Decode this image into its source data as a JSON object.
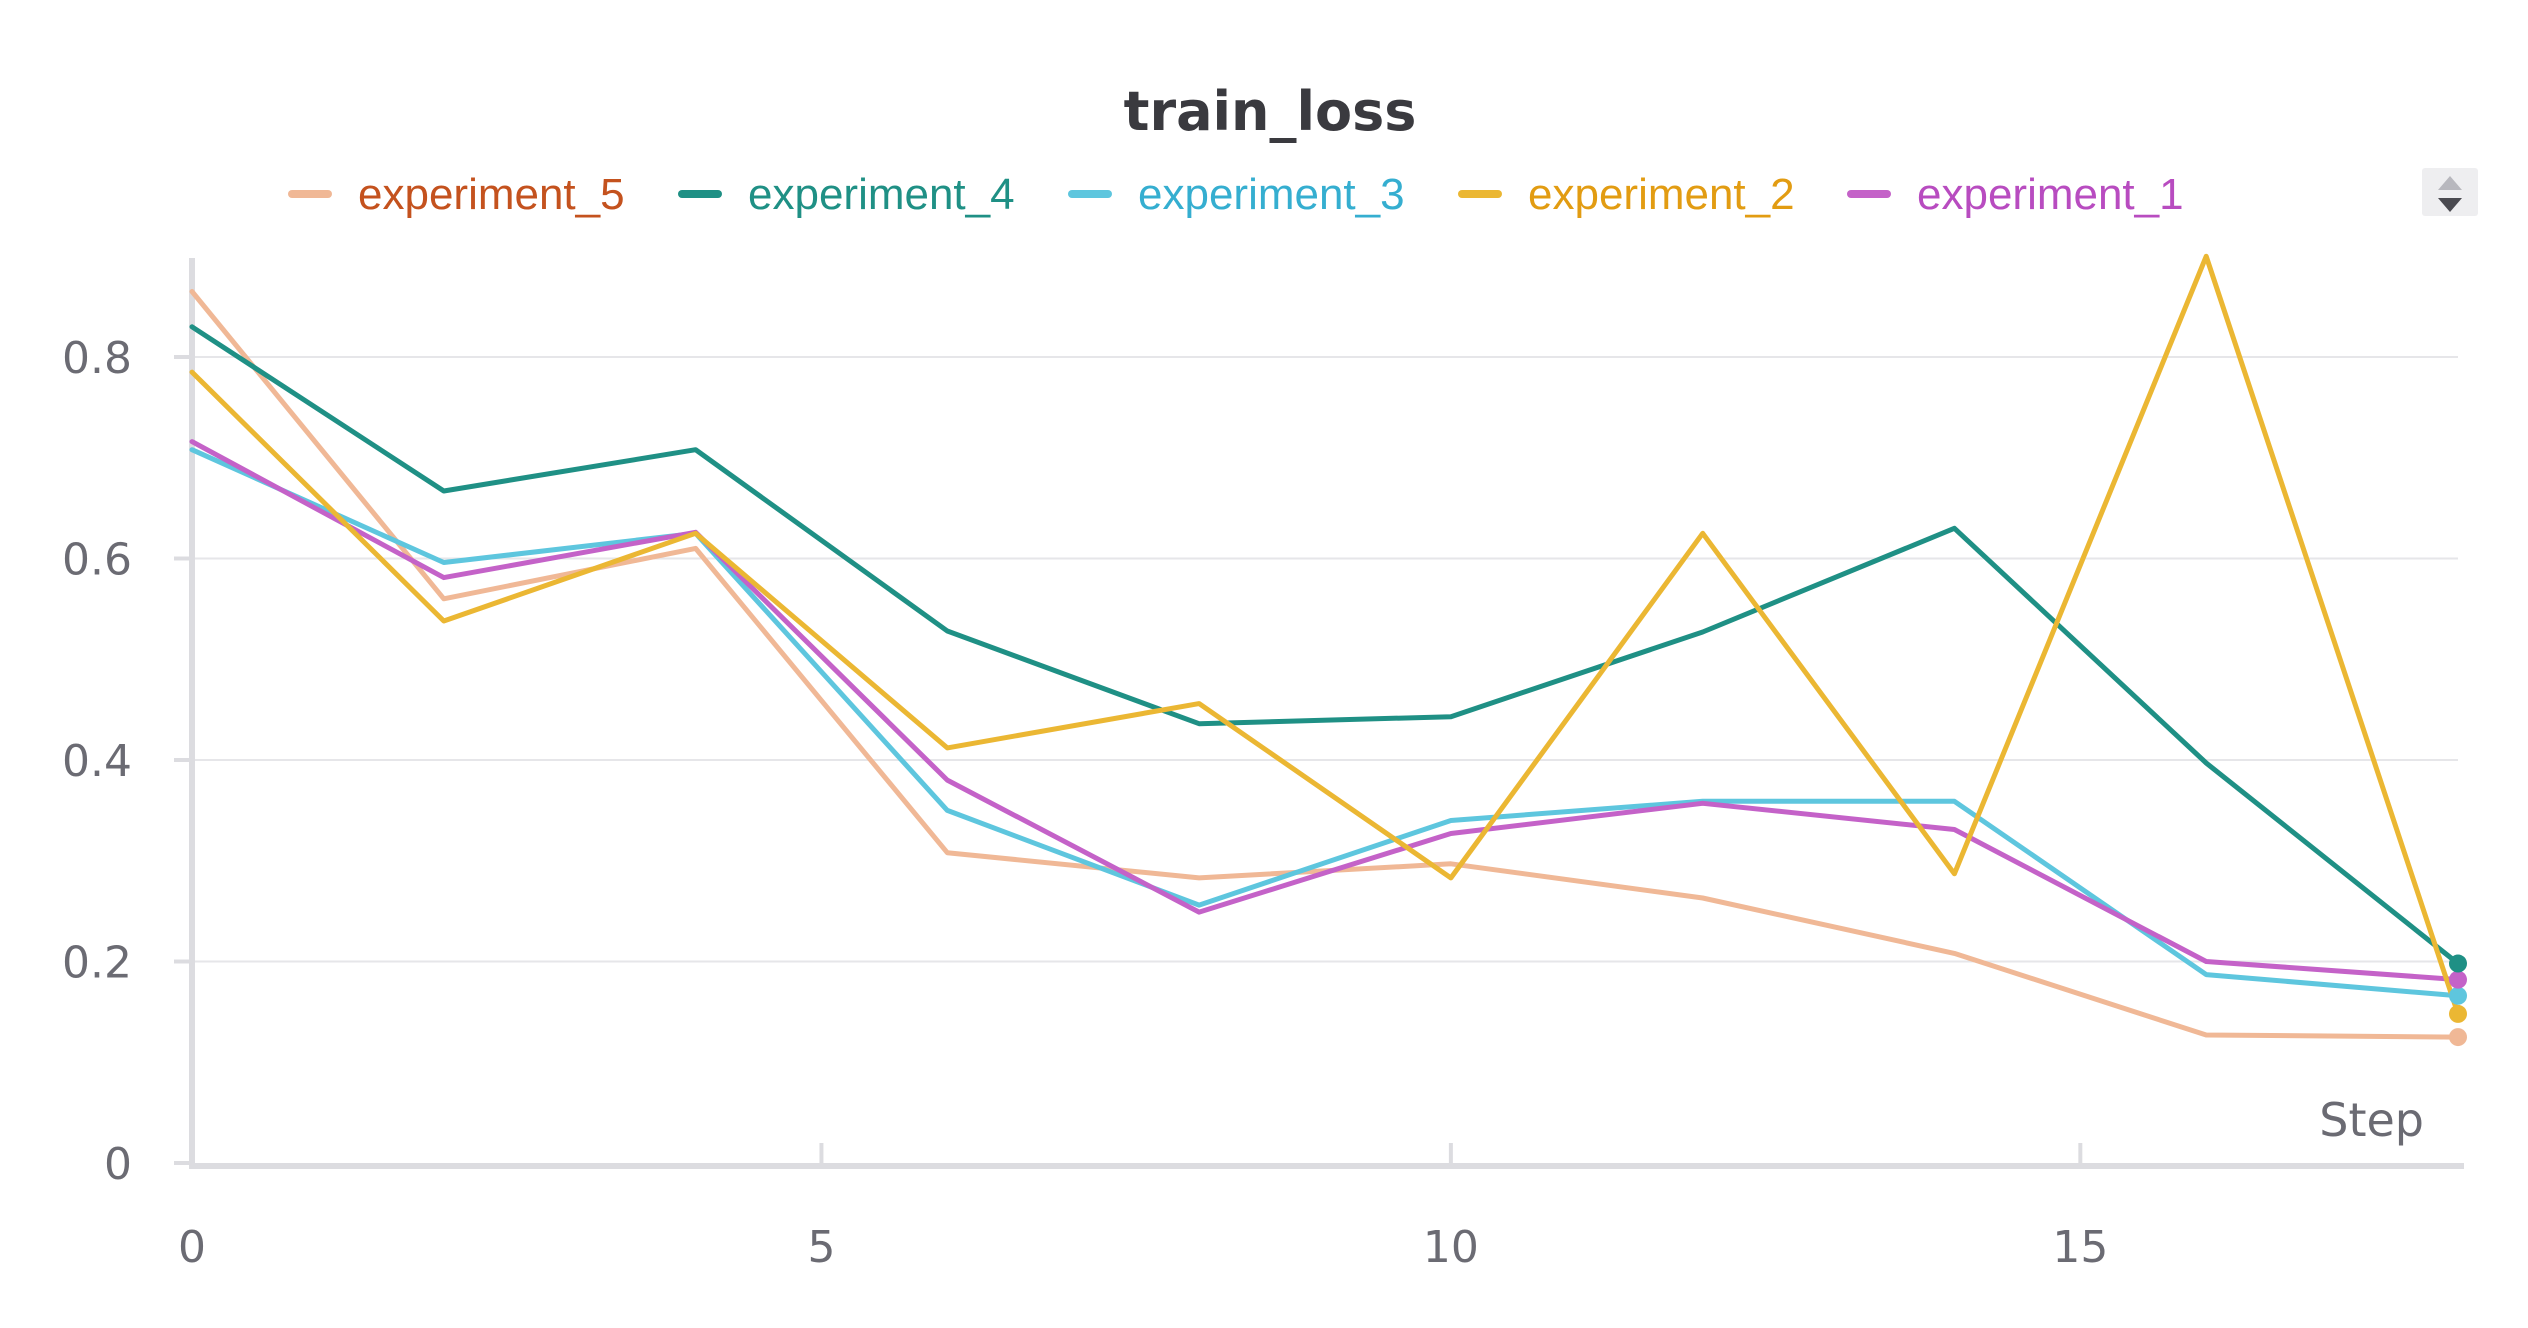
{
  "chart_data": {
    "type": "line",
    "title": "train_loss",
    "xlabel": "Step",
    "ylabel": "",
    "xlim": [
      0,
      18
    ],
    "ylim": [
      0,
      0.9
    ],
    "x_ticks": [
      0,
      5,
      10,
      15
    ],
    "y_ticks": [
      0,
      0.2,
      0.4,
      0.6,
      0.8
    ],
    "x_tick_labels": [
      "0",
      "5",
      "10",
      "15"
    ],
    "y_tick_labels": [
      "0",
      "0.2",
      "0.4",
      "0.6",
      "0.8"
    ],
    "grid": true,
    "legend_position": "top-center",
    "x": [
      0,
      2,
      4,
      6,
      8,
      10,
      12,
      14,
      16,
      18
    ],
    "series": [
      {
        "name": "experiment_5",
        "color": "#f0b896",
        "text_color": "#c4521e",
        "values": [
          0.865,
          0.56,
          0.61,
          0.308,
          0.283,
          0.297,
          0.263,
          0.208,
          0.127,
          0.125
        ]
      },
      {
        "name": "experiment_4",
        "color": "#1f9085",
        "text_color": "#1f9085",
        "values": [
          0.83,
          0.667,
          0.708,
          0.528,
          0.436,
          0.443,
          0.527,
          0.63,
          0.397,
          0.198
        ]
      },
      {
        "name": "experiment_3",
        "color": "#5ec6de",
        "text_color": "#35aed0",
        "values": [
          0.708,
          0.596,
          0.625,
          0.35,
          0.256,
          0.34,
          0.359,
          0.359,
          0.187,
          0.166
        ]
      },
      {
        "name": "experiment_2",
        "color": "#ebb733",
        "text_color": "#e29c12",
        "values": [
          0.785,
          0.538,
          0.625,
          0.412,
          0.456,
          0.283,
          0.625,
          0.287,
          0.9,
          0.148
        ]
      },
      {
        "name": "experiment_1",
        "color": "#c462c8",
        "text_color": "#b84cc0",
        "values": [
          0.716,
          0.581,
          0.626,
          0.38,
          0.249,
          0.327,
          0.357,
          0.331,
          0.2,
          0.182
        ]
      }
    ]
  },
  "legend_scroll": {
    "up_icon": "triangle-up-icon",
    "down_icon": "triangle-down-icon"
  }
}
